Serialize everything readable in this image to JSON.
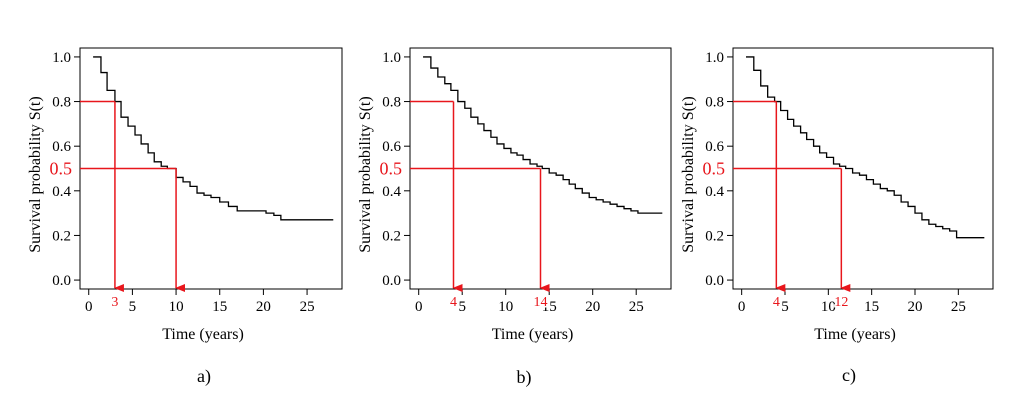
{
  "colors": {
    "curve": "#000000",
    "highlight": "#e8161c",
    "frame": "#000000"
  },
  "chart_data": [
    {
      "type": "line",
      "caption": "a)",
      "xlabel": "Time (years)",
      "ylabel": "Survival probability S(t)",
      "xlim": [
        -1,
        29
      ],
      "ylim": [
        -0.04,
        1.04
      ],
      "xticks": [
        0,
        5,
        10,
        15,
        20,
        25
      ],
      "yticks": [
        0.0,
        0.2,
        0.4,
        0.6,
        0.8,
        1.0
      ],
      "ytick_labels": [
        "0.0",
        "0.2",
        "0.4",
        "0.6",
        "0.8",
        "1.0"
      ],
      "legend": "none",
      "series": [
        {
          "step": "post",
          "x": [
            0.5,
            1.4,
            2.1,
            3.0,
            3.7,
            4.5,
            5.3,
            6.0,
            6.8,
            7.5,
            8.3,
            9.0,
            10.0,
            10.8,
            11.6,
            12.4,
            13.2,
            14.0,
            15.0,
            16.0,
            17.0,
            18.0,
            18.7,
            19.5,
            20.3,
            21.2,
            22.0,
            28.0
          ],
          "y": [
            1.0,
            0.93,
            0.85,
            0.8,
            0.73,
            0.69,
            0.65,
            0.61,
            0.57,
            0.53,
            0.51,
            0.5,
            0.46,
            0.44,
            0.42,
            0.39,
            0.38,
            0.37,
            0.35,
            0.33,
            0.31,
            0.31,
            0.31,
            0.31,
            0.3,
            0.29,
            0.27,
            0.27
          ]
        }
      ],
      "reference_lines": [
        {
          "survival": 0.8,
          "survival_label": "",
          "time": 3,
          "time_label": "3"
        },
        {
          "survival": 0.5,
          "survival_label": "0.5",
          "time": 10,
          "time_label": ""
        }
      ]
    },
    {
      "type": "line",
      "caption": "b)",
      "xlabel": "Time (years)",
      "ylabel": "Survival probability S(t)",
      "xlim": [
        -1,
        29
      ],
      "ylim": [
        -0.04,
        1.04
      ],
      "xticks": [
        0,
        5,
        10,
        15,
        20,
        25
      ],
      "yticks": [
        0.0,
        0.2,
        0.4,
        0.6,
        0.8,
        1.0
      ],
      "ytick_labels": [
        "0.0",
        "0.2",
        "0.4",
        "0.6",
        "0.8",
        "1.0"
      ],
      "legend": "none",
      "series": [
        {
          "step": "post",
          "x": [
            0.5,
            1.4,
            2.2,
            3.0,
            3.7,
            4.5,
            5.3,
            6.0,
            6.8,
            7.5,
            8.3,
            9.0,
            9.8,
            10.6,
            11.3,
            12.0,
            12.8,
            13.6,
            14.2,
            15.0,
            15.8,
            16.6,
            17.3,
            18.0,
            18.8,
            19.6,
            20.4,
            21.2,
            22.0,
            22.8,
            23.6,
            24.4,
            25.2,
            26.0,
            28.0
          ],
          "y": [
            1.0,
            0.95,
            0.91,
            0.88,
            0.85,
            0.8,
            0.77,
            0.73,
            0.7,
            0.67,
            0.64,
            0.61,
            0.59,
            0.57,
            0.56,
            0.54,
            0.52,
            0.51,
            0.5,
            0.48,
            0.47,
            0.45,
            0.43,
            0.41,
            0.39,
            0.37,
            0.36,
            0.35,
            0.34,
            0.33,
            0.32,
            0.31,
            0.3,
            0.3,
            0.3
          ]
        }
      ],
      "reference_lines": [
        {
          "survival": 0.8,
          "survival_label": "",
          "time": 4,
          "time_label": "4"
        },
        {
          "survival": 0.5,
          "survival_label": "0.5",
          "time": 14,
          "time_label": "14"
        }
      ]
    },
    {
      "type": "line",
      "caption": "c)",
      "xlabel": "Time (years)",
      "ylabel": "Survival probability S(t)",
      "xlim": [
        -1,
        29
      ],
      "ylim": [
        -0.04,
        1.04
      ],
      "xticks": [
        0,
        5,
        10,
        15,
        20,
        25
      ],
      "yticks": [
        0.0,
        0.2,
        0.4,
        0.6,
        0.8,
        1.0
      ],
      "ytick_labels": [
        "0.0",
        "0.2",
        "0.4",
        "0.6",
        "0.8",
        "1.0"
      ],
      "legend": "none",
      "series": [
        {
          "step": "post",
          "x": [
            0.5,
            1.4,
            2.2,
            3.0,
            3.8,
            4.5,
            5.3,
            6.0,
            6.8,
            7.5,
            8.3,
            9.0,
            9.8,
            10.6,
            11.3,
            12.0,
            12.8,
            13.6,
            14.4,
            15.2,
            16.0,
            16.8,
            17.6,
            18.4,
            19.2,
            20.0,
            20.8,
            21.6,
            22.4,
            23.2,
            24.0,
            24.8,
            25.6,
            28.0
          ],
          "y": [
            1.0,
            0.94,
            0.87,
            0.82,
            0.8,
            0.76,
            0.72,
            0.69,
            0.66,
            0.63,
            0.6,
            0.57,
            0.55,
            0.52,
            0.51,
            0.5,
            0.48,
            0.47,
            0.45,
            0.43,
            0.41,
            0.4,
            0.38,
            0.35,
            0.33,
            0.3,
            0.27,
            0.25,
            0.24,
            0.23,
            0.22,
            0.19,
            0.19,
            0.19
          ]
        }
      ],
      "reference_lines": [
        {
          "survival": 0.8,
          "survival_label": "",
          "time": 4,
          "time_label": "4"
        },
        {
          "survival": 0.5,
          "survival_label": "0.5",
          "time": 11.5,
          "time_label": "12"
        }
      ]
    }
  ]
}
